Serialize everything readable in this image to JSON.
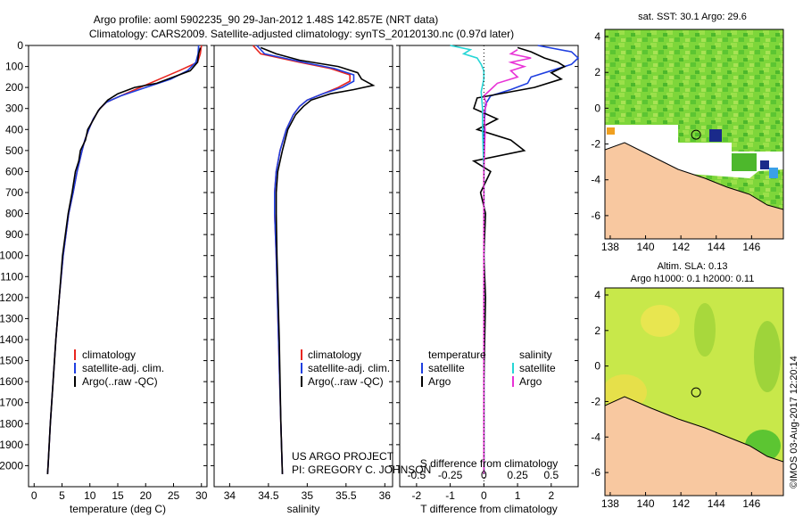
{
  "header": {
    "title_line1": "Argo profile: aoml 5902235_90 29-Jan-2012 1.48S 142.857E (NRT data)",
    "title_line2": "Climatology: CARS2009. Satellite-adjusted climatology: synTS_20120130.nc (0.97d later)"
  },
  "colors": {
    "climatology": "#e8251f",
    "satellite": "#1f3fe0",
    "argo": "#000000",
    "sal_sat": "#26d6d6",
    "sal_argo": "#e833d6",
    "land": "#f8c8a0"
  },
  "chart_data": [
    {
      "type": "line",
      "name": "temperature",
      "xlabel": "temperature (deg C)",
      "xlim": [
        -1,
        31
      ],
      "xticks": [
        "0",
        "5",
        "10",
        "15",
        "20",
        "25",
        "30"
      ],
      "ylim": [
        2100,
        0
      ],
      "yticks": [
        "0",
        "100",
        "200",
        "300",
        "400",
        "500",
        "600",
        "700",
        "800",
        "900",
        "1000",
        "1100",
        "1200",
        "1300",
        "1400",
        "1500",
        "1600",
        "1700",
        "1800",
        "1900",
        "2000"
      ],
      "legend": [
        "climatology",
        "satellite-adj. clim.",
        "Argo(..raw -QC)"
      ],
      "series": [
        {
          "name": "climatology",
          "depth": [
            0,
            40,
            80,
            120,
            160,
            200,
            240,
            270,
            300,
            350,
            400,
            450,
            500,
            600,
            700,
            800,
            1000,
            1200,
            1400,
            1600,
            1800,
            2000,
            2040
          ],
          "values": [
            30,
            29.8,
            29.3,
            26,
            22.5,
            19,
            15.5,
            13,
            11.8,
            10.6,
            9.8,
            9.1,
            8.6,
            7.7,
            7.0,
            6.2,
            5.2,
            4.5,
            3.9,
            3.4,
            2.9,
            2.5,
            2.4
          ]
        },
        {
          "name": "satellite-adj. clim.",
          "depth": [
            0,
            40,
            80,
            120,
            160,
            200,
            240,
            270,
            300,
            350,
            400,
            450,
            500,
            600,
            700,
            800,
            1000,
            1200,
            1400,
            1600,
            1800,
            2000,
            2040
          ],
          "values": [
            29.5,
            29.4,
            29,
            27.5,
            24.5,
            20,
            15.5,
            13,
            11.8,
            10.6,
            9.8,
            9.1,
            8.6,
            7.7,
            7.0,
            6.2,
            5.2,
            4.5,
            3.9,
            3.4,
            2.9,
            2.5,
            2.4
          ]
        },
        {
          "name": "Argo(..raw -QC)",
          "depth": [
            10,
            40,
            80,
            120,
            150,
            180,
            200,
            230,
            260,
            280,
            310,
            350,
            400,
            450,
            500,
            550,
            600,
            700,
            800,
            1000,
            1200,
            1400,
            1600,
            1800,
            2000,
            2040
          ],
          "values": [
            29.8,
            29.5,
            29.3,
            28,
            25,
            22,
            18,
            15,
            13.2,
            12.5,
            11.5,
            10.7,
            9.6,
            9.2,
            8.3,
            8.0,
            7.4,
            6.8,
            6.1,
            5.1,
            4.5,
            3.9,
            3.4,
            2.9,
            2.5,
            2.4
          ]
        }
      ]
    },
    {
      "type": "line",
      "name": "salinity",
      "xlabel": "salinity",
      "xlim": [
        33.8,
        36.1
      ],
      "xticks": [
        "34",
        "34.5",
        "35",
        "35.5",
        "36"
      ],
      "ylim": [
        2100,
        0
      ],
      "legend": [
        "climatology",
        "satellite-adj. clim.",
        "Argo(..raw -QC)"
      ],
      "series": [
        {
          "name": "climatology",
          "depth": [
            0,
            40,
            80,
            110,
            140,
            170,
            200,
            230,
            260,
            290,
            330,
            400,
            500,
            600,
            700,
            800,
            1000,
            1400,
            1800,
            2040
          ],
          "values": [
            34.3,
            34.4,
            34.9,
            35.3,
            35.55,
            35.55,
            35.4,
            35.2,
            35.0,
            34.9,
            34.82,
            34.73,
            34.65,
            34.6,
            34.58,
            34.58,
            34.6,
            34.63,
            34.66,
            34.68
          ]
        },
        {
          "name": "satellite-adj. clim.",
          "depth": [
            0,
            40,
            80,
            110,
            140,
            170,
            200,
            230,
            260,
            290,
            330,
            400,
            500,
            600,
            700,
            800,
            1000,
            1400,
            1800,
            2040
          ],
          "values": [
            34.35,
            34.45,
            34.95,
            35.35,
            35.6,
            35.6,
            35.45,
            35.2,
            35.0,
            34.9,
            34.82,
            34.73,
            34.65,
            34.6,
            34.58,
            34.58,
            34.6,
            34.63,
            34.66,
            34.68
          ]
        },
        {
          "name": "Argo(..raw -QC)",
          "depth": [
            10,
            40,
            70,
            100,
            130,
            160,
            190,
            210,
            230,
            260,
            290,
            330,
            400,
            500,
            600,
            700,
            800,
            1000,
            1400,
            1800,
            2040
          ],
          "values": [
            34.4,
            34.6,
            34.9,
            35.4,
            35.65,
            35.7,
            35.85,
            35.6,
            35.3,
            35.05,
            34.95,
            34.85,
            34.75,
            34.68,
            34.62,
            34.6,
            34.6,
            34.61,
            34.64,
            34.66,
            34.68
          ]
        }
      ]
    },
    {
      "type": "line",
      "name": "difference",
      "xlabel_top": "S difference from climatology",
      "xlabel": "T difference from climatology",
      "xlim": [
        -2.5,
        2.8
      ],
      "xticks": [
        "-2",
        "-1",
        "0",
        "1",
        "2"
      ],
      "xticks_sal": [
        "-0.5",
        "-0.25",
        "0",
        "0.25",
        "0.5"
      ],
      "ylim": [
        2100,
        0
      ],
      "legend_temperature_title": "temperature",
      "legend_salinity_title": "salinity",
      "legend": [
        "satellite",
        "Argo",
        "satellite",
        "Argo"
      ],
      "series": [
        {
          "name": "T satellite",
          "depth": [
            0,
            30,
            60,
            90,
            120,
            150,
            180,
            210,
            240,
            280,
            350,
            450,
            600,
            800,
            1200,
            2040
          ],
          "values": [
            1.6,
            2.6,
            2.8,
            2.6,
            2.0,
            1.4,
            1.3,
            0.8,
            0.2,
            0.05,
            0.02,
            0.0,
            0.0,
            0.0,
            0.0,
            0.0
          ]
        },
        {
          "name": "T Argo",
          "depth": [
            10,
            30,
            60,
            80,
            100,
            130,
            160,
            200,
            250,
            300,
            350,
            400,
            450,
            500,
            550,
            600,
            700,
            800,
            1000,
            1200,
            1600,
            2040
          ],
          "values": [
            1.0,
            1.4,
            1.8,
            2.2,
            2.4,
            2.0,
            2.3,
            1.5,
            -0.2,
            -0.3,
            0.4,
            -0.2,
            0.8,
            1.2,
            -0.3,
            0.2,
            -0.1,
            0.05,
            0.0,
            0.05,
            0.0,
            0.0
          ]
        },
        {
          "name": "S satellite",
          "depth": [
            0,
            20,
            40,
            60,
            90,
            120,
            160,
            220,
            300,
            400,
            600,
            800,
            1200,
            2040
          ],
          "values": [
            -0.25,
            -0.1,
            -0.15,
            -0.05,
            -0.02,
            0.0,
            0.0,
            -0.02,
            -0.01,
            -0.01,
            0.0,
            0.0,
            0.0,
            0.0
          ]
        },
        {
          "name": "S Argo",
          "depth": [
            20,
            40,
            60,
            80,
            100,
            120,
            150,
            180,
            210,
            240,
            280,
            320,
            400,
            600,
            800,
            1200,
            2040
          ],
          "values": [
            0.25,
            0.2,
            0.35,
            0.2,
            0.3,
            0.2,
            0.25,
            0.1,
            0.05,
            0.0,
            0.02,
            0.0,
            0.01,
            0.0,
            0.0,
            0.0,
            0.0
          ]
        }
      ]
    },
    {
      "type": "heatmap",
      "name": "sst_map",
      "title": "sat. SST: 30.1  Argo: 29.6",
      "xticks": [
        "138",
        "140",
        "142",
        "144",
        "146"
      ],
      "yticks": [
        "4",
        "2",
        "0",
        "-2",
        "-4",
        "-6"
      ],
      "marker_lon": 142.857,
      "marker_lat": -1.48
    },
    {
      "type": "heatmap",
      "name": "sla_map",
      "title1": "Altim. SLA: 0.13",
      "title2": "Argo h1000: 0.1 h2000: 0.11",
      "xticks": [
        "138",
        "140",
        "142",
        "144",
        "146"
      ],
      "yticks": [
        "4",
        "2",
        "0",
        "-2",
        "-4",
        "-6"
      ],
      "marker_lon": 142.857,
      "marker_lat": -1.48
    }
  ],
  "credits": {
    "project": "US ARGO PROJECT",
    "pi": "PI: GREGORY C. JOHNSON",
    "stamp": "©IMOS 03-Aug-2017 12:20:14"
  }
}
